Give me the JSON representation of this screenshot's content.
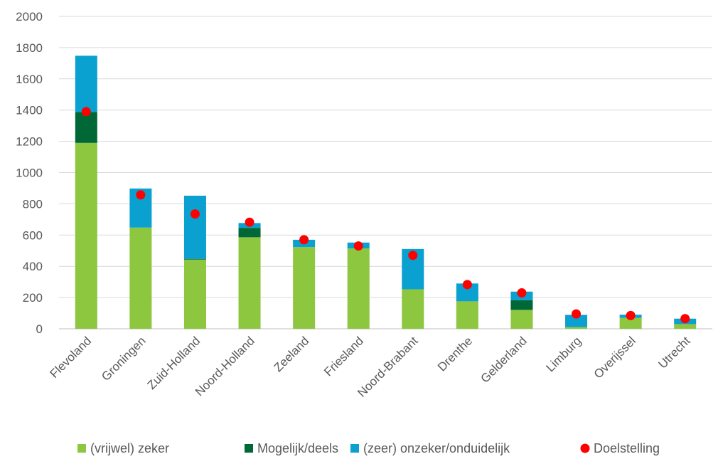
{
  "chart_data": {
    "type": "bar",
    "stacked": true,
    "title": "",
    "xlabel": "",
    "ylabel": "",
    "ylim": [
      0,
      2000
    ],
    "ytick_step": 200,
    "grid": true,
    "legend_position": "bottom",
    "categories": [
      "Flevoland",
      "Groningen",
      "Zuid-Holland",
      "Noord-Holland",
      "Zeeland",
      "Friesland",
      "Noord-Brabant",
      "Drenthe",
      "Gelderland",
      "Limburg",
      "Overijssel",
      "Utrecht"
    ],
    "series": [
      {
        "name": "(vrijwel) zeker",
        "color": "#8dc63f",
        "values": [
          1190,
          648,
          443,
          586,
          523,
          514,
          253,
          176,
          121,
          11,
          70,
          30
        ]
      },
      {
        "name": "Mogelijk/deels",
        "color": "#006837",
        "values": [
          197,
          0,
          5,
          60,
          0,
          0,
          0,
          0,
          62,
          0,
          0,
          0
        ]
      },
      {
        "name": "(zeer) onzeker/onduidelijk",
        "color": "#0aa0d0",
        "values": [
          361,
          250,
          404,
          31,
          47,
          38,
          258,
          114,
          55,
          78,
          20,
          35
        ]
      }
    ],
    "points": {
      "name": "Doelstelling",
      "color": "#ff0000",
      "values": [
        1390,
        857,
        735,
        682,
        570,
        530,
        470,
        283,
        230,
        95,
        85,
        65
      ]
    }
  }
}
